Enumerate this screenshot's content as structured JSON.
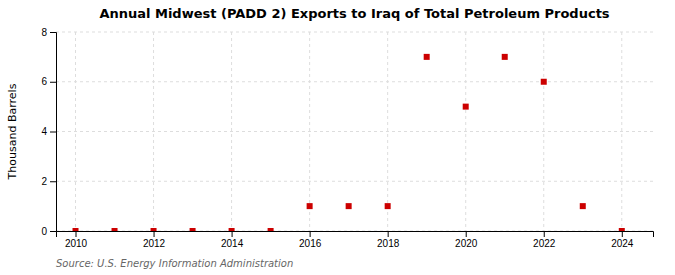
{
  "chart_data": {
    "type": "scatter",
    "title": "Annual Midwest (PADD 2) Exports to Iraq of Total Petroleum Products",
    "y_label": "Thousand Barrels",
    "source": "Source: U.S. Energy Information Administration",
    "x": [
      2010,
      2011,
      2012,
      2013,
      2014,
      2015,
      2016,
      2017,
      2018,
      2019,
      2020,
      2021,
      2022,
      2023,
      2024
    ],
    "values": [
      0,
      0,
      0,
      0,
      0,
      0,
      1,
      1,
      1,
      7,
      5,
      7,
      6,
      1,
      0
    ],
    "color": "#cc0000",
    "marker": "square",
    "xlim": [
      2009.5,
      2024.8
    ],
    "ylim": [
      0,
      8
    ],
    "xticks": [
      2010,
      2012,
      2014,
      2016,
      2018,
      2020,
      2022,
      2024
    ],
    "yticks": [
      0,
      2,
      4,
      6,
      8
    ],
    "grid": true
  }
}
